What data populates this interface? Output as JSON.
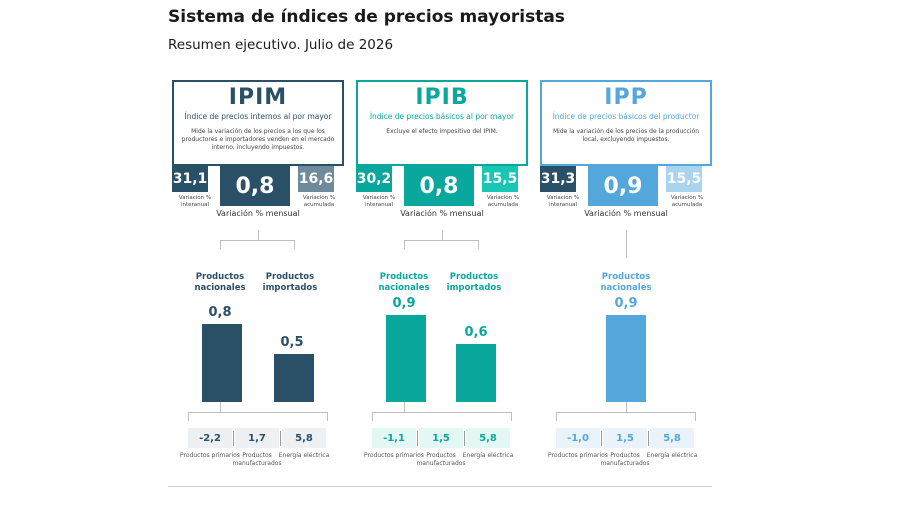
{
  "title": "Sistema de índices de precios mayoristas",
  "subtitle": "Resumen ejecutivo. Julio de 2026",
  "colors": {
    "ipim": "#2a5068",
    "ipim_side": "#6f8a9a",
    "ipim_sub_bg": "#eef1f4",
    "ipib": "#0aa79d",
    "ipib_side": "#17c7b4",
    "ipib_sub_bg": "#e3f8f5",
    "ipp": "#53a7db",
    "ipp_side": "#a9d4ef",
    "ipp_sub_bg": "#eaf3fa"
  },
  "panels": [
    {
      "code": "IPIM",
      "name": "Índice de precios internos al por mayor",
      "description": "Mide la variación de los precios a los que los productores e importadores venden en el mercado interno, incluyendo impuestos.",
      "interanual": "31,1",
      "interanual_label": "Variación % interanual",
      "mensual": "0,8",
      "mensual_label": "Variación % mensual",
      "acumulada": "16,6",
      "acumulada_label": "Variación % acumulada"
    },
    {
      "code": "IPIB",
      "name": "Índice de precios básicos al por mayor",
      "description": "Excluye el efecto impositivo del IPIM.",
      "interanual": "30,2",
      "interanual_label": "Variación % interanual",
      "mensual": "0,8",
      "mensual_label": "Variación % mensual",
      "acumulada": "15,5",
      "acumulada_label": "Variación % acumulada"
    },
    {
      "code": "IPP",
      "name": "Índice de precios básicos del productor",
      "description": "Mide la variación de los precios de la producción local, excluyendo impuestos.",
      "interanual": "31,3",
      "interanual_label": "Variación % interanual",
      "mensual": "0,9",
      "mensual_label": "Variación % mensual",
      "acumulada": "15,5",
      "acumulada_label": "Variación % acumulada"
    }
  ],
  "chart_data": [
    {
      "type": "bar",
      "panel": "IPIM",
      "categories": [
        "Productos nacionales",
        "Productos importados"
      ],
      "values": [
        0.8,
        0.5
      ],
      "value_labels": [
        "0,8",
        "0,5"
      ]
    },
    {
      "type": "bar",
      "panel": "IPIB",
      "categories": [
        "Productos nacionales",
        "Productos importados"
      ],
      "values": [
        0.9,
        0.6
      ],
      "value_labels": [
        "0,9",
        "0,6"
      ]
    },
    {
      "type": "bar",
      "panel": "IPP",
      "categories": [
        "Productos nacionales"
      ],
      "values": [
        0.9
      ],
      "value_labels": [
        "0,9"
      ]
    }
  ],
  "breakdowns": [
    [
      {
        "value": "-2,2",
        "label": "Productos primarios"
      },
      {
        "value": "1,7",
        "label": "Productos manufacturados"
      },
      {
        "value": "5,8",
        "label": "Energía eléctrica"
      }
    ],
    [
      {
        "value": "-1,1",
        "label": "Productos primarios"
      },
      {
        "value": "1,5",
        "label": "Productos manufacturados"
      },
      {
        "value": "5,8",
        "label": "Energía eléctrica"
      }
    ],
    [
      {
        "value": "-1,0",
        "label": "Productos primarios"
      },
      {
        "value": "1,5",
        "label": "Productos manufacturados"
      },
      {
        "value": "5,8",
        "label": "Energía eléctrica"
      }
    ]
  ]
}
